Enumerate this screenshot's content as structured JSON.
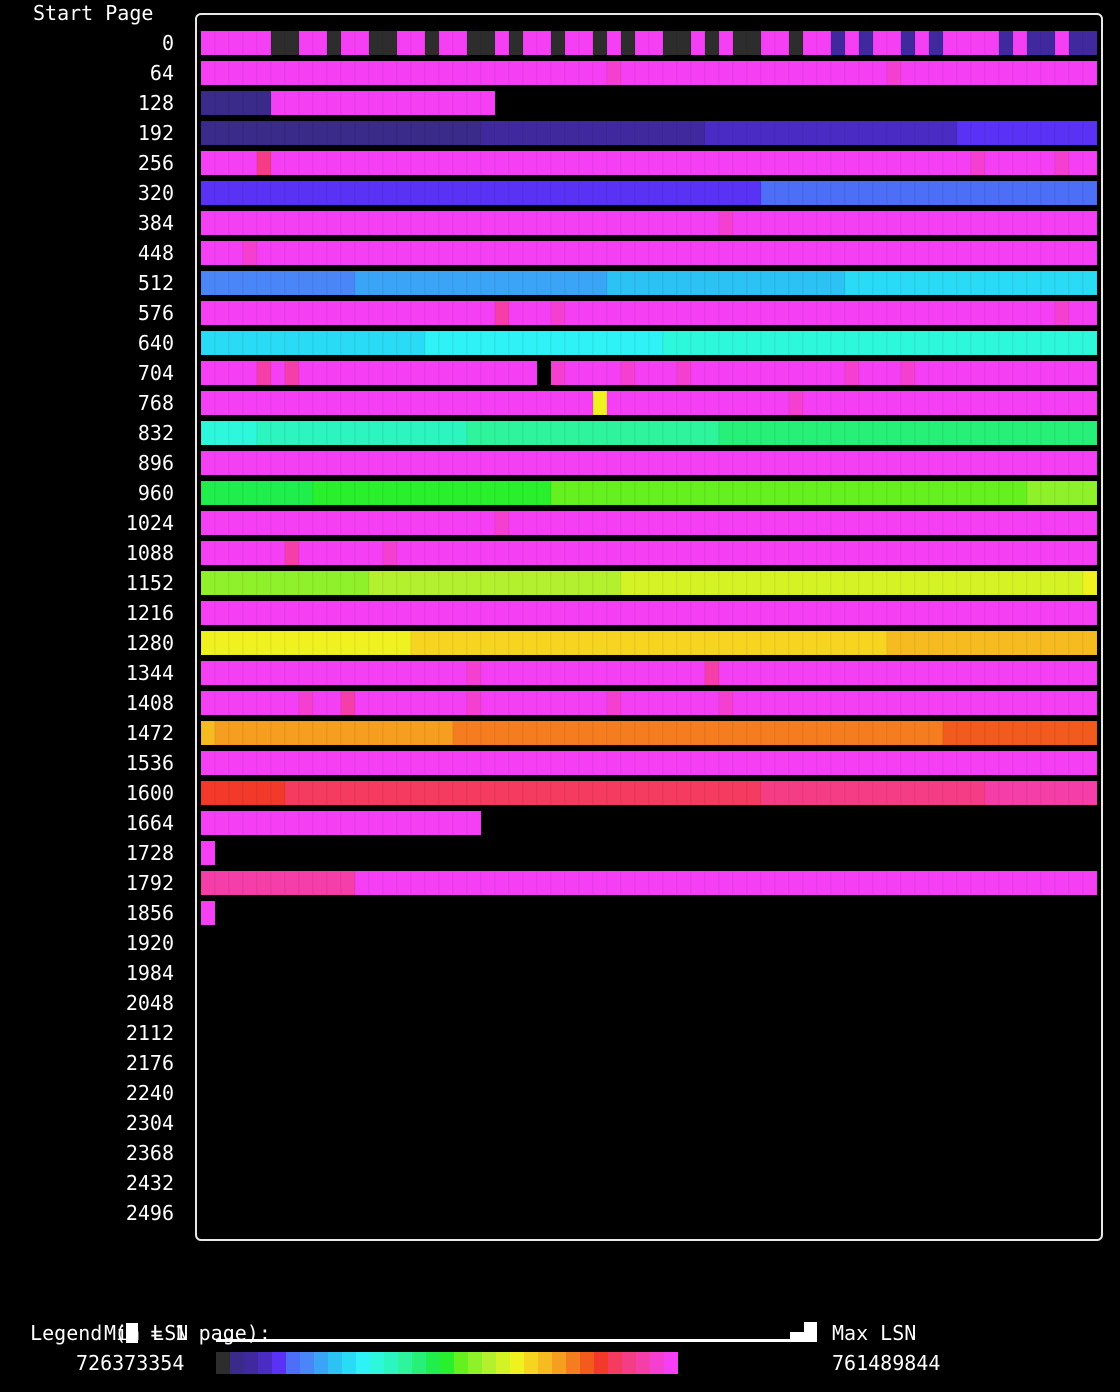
{
  "chart_data": {
    "type": "heatmap",
    "y_header": "Start Page",
    "pages_per_row": 64,
    "row_start_pages": [
      0,
      64,
      128,
      192,
      256,
      320,
      384,
      448,
      512,
      576,
      640,
      704,
      768,
      832,
      896,
      960,
      1024,
      1088,
      1152,
      1216,
      1280,
      1344,
      1408,
      1472,
      1536,
      1600,
      1664,
      1728,
      1792,
      1856,
      1920,
      1984,
      2048,
      2112,
      2176,
      2240,
      2304,
      2368,
      2432,
      2496
    ],
    "legend": {
      "title": "Legend (",
      "title_tail": " = 1 page):",
      "min_label": "Min LSN",
      "max_label": "Max LSN",
      "min_lsn": "726373354",
      "max_lsn": "761489844"
    },
    "palette": [
      "#2d2d2d",
      "#3a2a8a",
      "#40299f",
      "#4a2cc4",
      "#5a32f5",
      "#4d6ef6",
      "#4a86f8",
      "#3aa5f6",
      "#2cc2f4",
      "#29dbf4",
      "#2ef2f5",
      "#2ef8dc",
      "#2cf5bf",
      "#2ef49c",
      "#27f078",
      "#1fee4d",
      "#2aef2c",
      "#65f01f",
      "#8ef12a",
      "#b3f12e",
      "#d4f324",
      "#f0f21f",
      "#f6d41f",
      "#f5bb20",
      "#f69e1f",
      "#f57d1f",
      "#f25a1e",
      "#f2392a",
      "#f53b5f",
      "#f53d86",
      "#f53ea8",
      "#f53fd0",
      "#f53ff5"
    ],
    "runs": [
      [
        [
          0,
          5,
          32
        ],
        [
          5,
          7,
          0
        ],
        [
          7,
          9,
          32
        ],
        [
          9,
          10,
          0
        ],
        [
          10,
          12,
          32
        ],
        [
          12,
          14,
          0
        ],
        [
          14,
          16,
          32
        ],
        [
          16,
          17,
          0
        ],
        [
          17,
          19,
          32
        ],
        [
          19,
          21,
          0
        ],
        [
          21,
          22,
          32
        ],
        [
          22,
          23,
          0
        ],
        [
          23,
          25,
          32
        ],
        [
          25,
          26,
          0
        ],
        [
          26,
          28,
          32
        ],
        [
          28,
          29,
          0
        ],
        [
          29,
          30,
          32
        ],
        [
          30,
          31,
          0
        ],
        [
          31,
          33,
          32
        ],
        [
          33,
          35,
          0
        ],
        [
          35,
          36,
          32
        ],
        [
          36,
          37,
          0
        ],
        [
          37,
          38,
          32
        ],
        [
          38,
          40,
          0
        ],
        [
          40,
          42,
          32
        ],
        [
          42,
          43,
          0
        ],
        [
          43,
          45,
          32
        ],
        [
          45,
          46,
          2
        ],
        [
          46,
          47,
          32
        ],
        [
          47,
          48,
          2
        ],
        [
          48,
          50,
          32
        ],
        [
          50,
          51,
          2
        ],
        [
          51,
          52,
          32
        ],
        [
          52,
          53,
          2
        ],
        [
          53,
          57,
          32
        ],
        [
          57,
          58,
          2
        ],
        [
          58,
          59,
          32
        ],
        [
          59,
          61,
          2
        ],
        [
          61,
          62,
          32
        ],
        [
          62,
          64,
          2
        ]
      ],
      [
        [
          0,
          29,
          32
        ],
        [
          29,
          30,
          31
        ],
        [
          30,
          49,
          32
        ],
        [
          49,
          50,
          31
        ],
        [
          50,
          64,
          32
        ]
      ],
      [
        [
          0,
          5,
          1
        ],
        [
          5,
          21,
          32
        ]
      ],
      [
        [
          0,
          20,
          1
        ],
        [
          20,
          36,
          2
        ],
        [
          36,
          54,
          3
        ],
        [
          54,
          64,
          4
        ]
      ],
      [
        [
          0,
          4,
          32
        ],
        [
          4,
          5,
          29
        ],
        [
          5,
          55,
          32
        ],
        [
          55,
          56,
          31
        ],
        [
          56,
          61,
          32
        ],
        [
          61,
          62,
          31
        ],
        [
          62,
          64,
          32
        ]
      ],
      [
        [
          0,
          40,
          4
        ],
        [
          40,
          64,
          5
        ]
      ],
      [
        [
          0,
          37,
          32
        ],
        [
          37,
          38,
          31
        ],
        [
          38,
          64,
          32
        ]
      ],
      [
        [
          0,
          3,
          32
        ],
        [
          3,
          4,
          31
        ],
        [
          4,
          64,
          32
        ]
      ],
      [
        [
          0,
          11,
          6
        ],
        [
          11,
          29,
          7
        ],
        [
          29,
          46,
          8
        ],
        [
          46,
          64,
          9
        ]
      ],
      [
        [
          0,
          21,
          32
        ],
        [
          21,
          22,
          30
        ],
        [
          22,
          25,
          32
        ],
        [
          25,
          26,
          31
        ],
        [
          26,
          61,
          32
        ],
        [
          61,
          62,
          31
        ],
        [
          62,
          64,
          32
        ]
      ],
      [
        [
          0,
          16,
          9
        ],
        [
          16,
          33,
          10
        ],
        [
          33,
          64,
          11
        ]
      ],
      [
        [
          0,
          4,
          32
        ],
        [
          4,
          5,
          30
        ],
        [
          5,
          6,
          32
        ],
        [
          6,
          7,
          30
        ],
        [
          7,
          24,
          32
        ],
        [
          25,
          26,
          31
        ],
        [
          26,
          30,
          32
        ],
        [
          30,
          31,
          31
        ],
        [
          31,
          34,
          32
        ],
        [
          34,
          35,
          31
        ],
        [
          35,
          46,
          32
        ],
        [
          46,
          47,
          31
        ],
        [
          47,
          50,
          32
        ],
        [
          50,
          51,
          31
        ],
        [
          51,
          64,
          32
        ]
      ],
      [
        [
          0,
          28,
          32
        ],
        [
          28,
          29,
          21
        ],
        [
          29,
          42,
          32
        ],
        [
          42,
          43,
          31
        ],
        [
          43,
          64,
          32
        ]
      ],
      [
        [
          0,
          4,
          11
        ],
        [
          4,
          19,
          12
        ],
        [
          19,
          37,
          13
        ],
        [
          37,
          64,
          14
        ]
      ],
      [
        [
          0,
          64,
          32
        ]
      ],
      [
        [
          0,
          8,
          15
        ],
        [
          8,
          25,
          16
        ],
        [
          25,
          59,
          17
        ],
        [
          59,
          64,
          18
        ]
      ],
      [
        [
          0,
          21,
          32
        ],
        [
          21,
          22,
          31
        ],
        [
          22,
          64,
          32
        ]
      ],
      [
        [
          0,
          6,
          32
        ],
        [
          6,
          7,
          30
        ],
        [
          7,
          13,
          32
        ],
        [
          13,
          14,
          31
        ],
        [
          14,
          64,
          32
        ]
      ],
      [
        [
          0,
          12,
          18
        ],
        [
          12,
          30,
          19
        ],
        [
          30,
          63,
          20
        ],
        [
          63,
          64,
          21
        ]
      ],
      [
        [
          0,
          64,
          32
        ]
      ],
      [
        [
          0,
          15,
          21
        ],
        [
          15,
          49,
          22
        ],
        [
          49,
          64,
          23
        ]
      ],
      [
        [
          0,
          19,
          32
        ],
        [
          19,
          20,
          31
        ],
        [
          20,
          36,
          32
        ],
        [
          36,
          37,
          30
        ],
        [
          37,
          64,
          32
        ]
      ],
      [
        [
          0,
          7,
          32
        ],
        [
          7,
          8,
          31
        ],
        [
          8,
          10,
          32
        ],
        [
          10,
          11,
          30
        ],
        [
          11,
          19,
          32
        ],
        [
          19,
          20,
          31
        ],
        [
          20,
          29,
          32
        ],
        [
          29,
          30,
          31
        ],
        [
          30,
          37,
          32
        ],
        [
          37,
          38,
          31
        ],
        [
          38,
          64,
          32
        ]
      ],
      [
        [
          0,
          1,
          23
        ],
        [
          1,
          18,
          24
        ],
        [
          18,
          53,
          25
        ],
        [
          53,
          64,
          26
        ]
      ],
      [
        [
          0,
          64,
          32
        ]
      ],
      [
        [
          0,
          6,
          27
        ],
        [
          6,
          40,
          28
        ],
        [
          40,
          56,
          29
        ],
        [
          56,
          64,
          30
        ]
      ],
      [
        [
          0,
          20,
          32
        ]
      ],
      [
        [
          0,
          1,
          32
        ]
      ],
      [
        [
          0,
          11,
          30
        ],
        [
          11,
          64,
          32
        ]
      ],
      [
        [
          0,
          1,
          32
        ]
      ],
      [],
      [],
      [],
      [],
      [],
      [],
      [],
      [],
      [],
      []
    ]
  }
}
